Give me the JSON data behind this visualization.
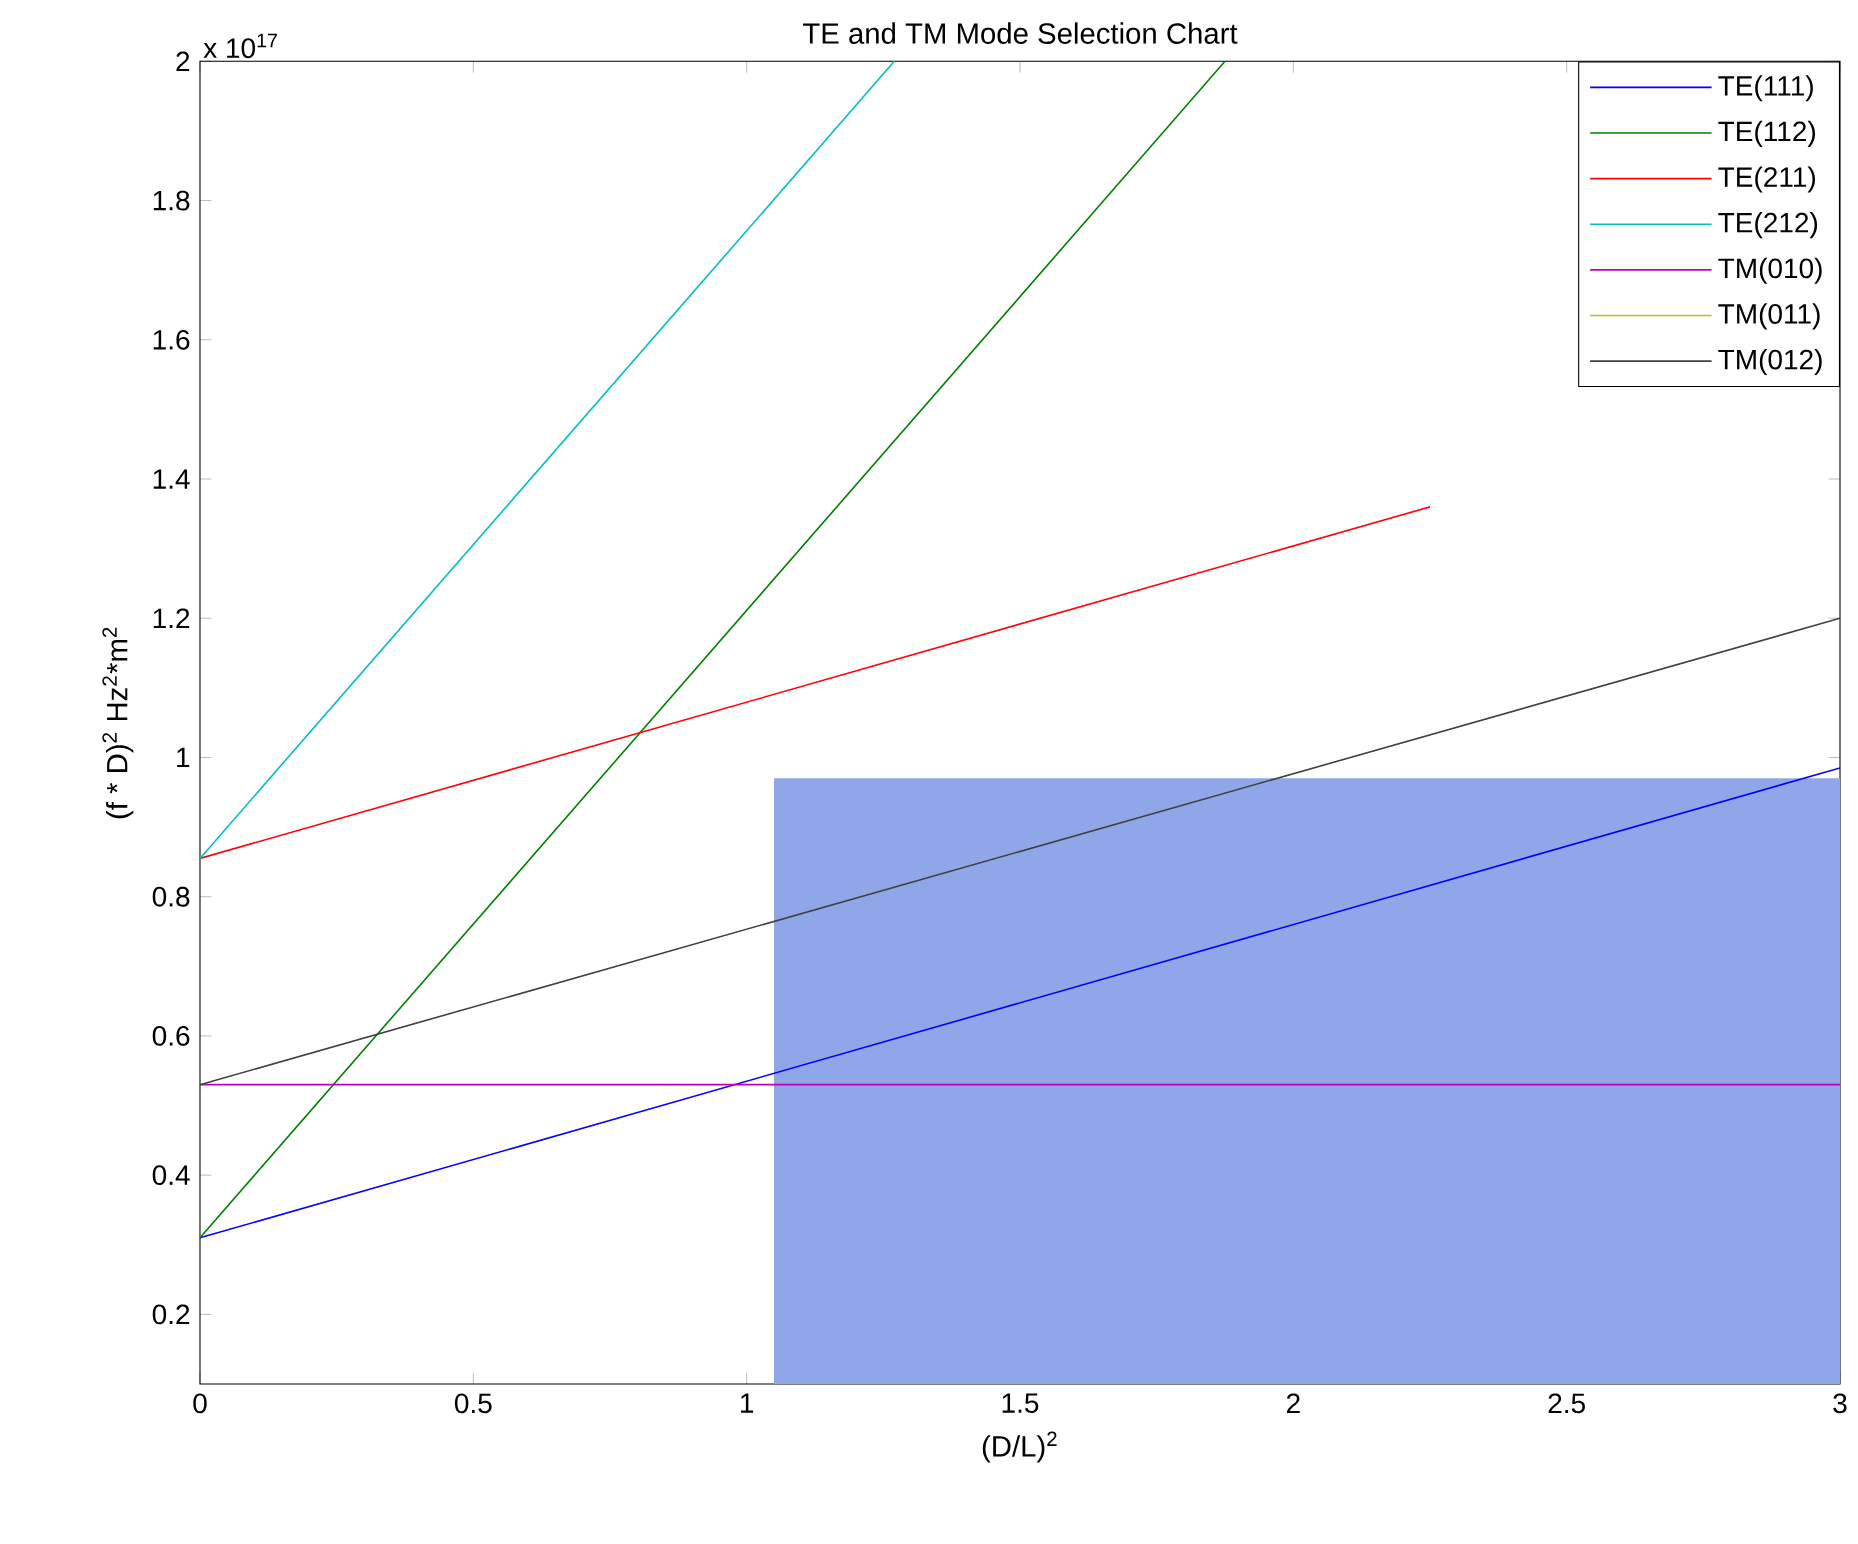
{
  "chart_data": {
    "type": "line",
    "title": "TE and TM Mode Selection Chart",
    "xlabel": "(D/L)$^{2}$",
    "ylabel": "(f * D)$^{2}$ Hz$^{2}$*m$^{2}$",
    "annotations": [
      "x 10$^{17}$"
    ],
    "xlim": [
      0,
      3
    ],
    "ylim": [
      0.1,
      2
    ],
    "xticks": [
      0,
      0.5,
      1,
      1.5,
      2,
      2.5,
      3
    ],
    "yticks": [
      0.2,
      0.4,
      0.6,
      0.8,
      1,
      1.2,
      1.4,
      1.6,
      1.8,
      2
    ],
    "grid": false,
    "legend": "top right",
    "marker": "none",
    "line_style": "solid",
    "series": [
      {
        "type": "area",
        "color": "#8fa6e8",
        "x": [
          1.05,
          3
        ],
        "values": [
          0.97,
          0.97
        ]
      },
      {
        "name": "TE(111)",
        "color": "#0000ff",
        "x": [
          0,
          3
        ],
        "values": [
          0.31,
          0.985
        ]
      },
      {
        "name": "TE(112)",
        "color": "#008000",
        "x": [
          0,
          1.875
        ],
        "values": [
          0.31,
          2.0
        ]
      },
      {
        "name": "TE(211)",
        "color": "#ff0000",
        "x": [
          0,
          2.25
        ],
        "values": [
          0.855,
          1.36
        ]
      },
      {
        "name": "TE(212)",
        "color": "#00bfbf",
        "x": [
          0,
          1.27
        ],
        "values": [
          0.855,
          2.0
        ]
      },
      {
        "name": "TM(010)",
        "color": "#bf00bf",
        "x": [
          0,
          3
        ],
        "values": [
          0.53,
          0.53
        ]
      },
      {
        "name": "TM(011)",
        "color": "#bfbf00",
        "values": [
          null,
          null
        ]
      },
      {
        "name": "TM(012)",
        "color": "#404040",
        "x": [
          0,
          3
        ],
        "values": [
          0.53,
          1.2
        ]
      }
    ]
  }
}
